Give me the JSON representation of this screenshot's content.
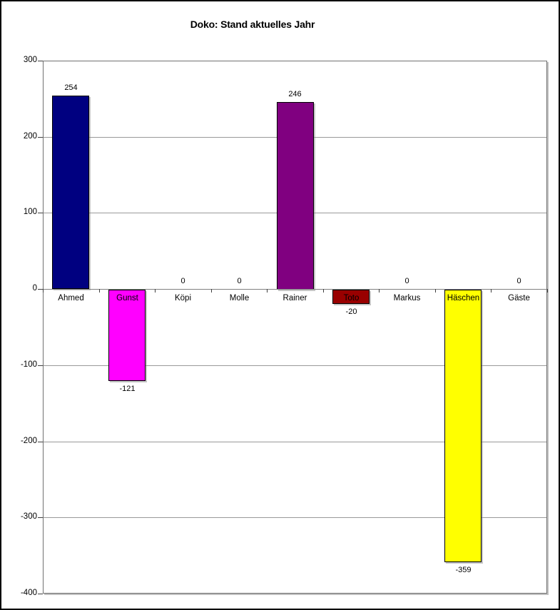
{
  "chart_data": {
    "type": "bar",
    "title": "Doko: Stand aktuelles Jahr",
    "categories": [
      "Ahmed",
      "Gunst",
      "Köpi",
      "Molle",
      "Rainer",
      "Toto",
      "Markus",
      "Häschen",
      "Gäste"
    ],
    "values": [
      254,
      -121,
      0,
      0,
      246,
      -20,
      0,
      -359,
      0
    ],
    "value_labels": [
      "254",
      "-121",
      "0",
      "0",
      "246",
      "-20",
      "0",
      "-359",
      "0"
    ],
    "bar_colors": [
      "#000080",
      "#FF00FF",
      null,
      null,
      "#800080",
      "#990000",
      null,
      "#FFFF00",
      null
    ],
    "xlabel": "",
    "ylabel": "",
    "ylim": [
      -400,
      300
    ],
    "yticks": [
      300,
      200,
      100,
      0,
      -100,
      -200,
      -300,
      -400
    ],
    "ytick_labels": [
      "300",
      "200",
      "100",
      "0",
      "-100",
      "-200",
      "-300",
      "-400"
    ],
    "grid": true,
    "legend": "none",
    "styles": {
      "background": "#FFFFFF",
      "outer_border": "#000000",
      "plot_border": "#707070",
      "grid_color": "#999999",
      "axis_color": "#808080",
      "tick_color": "#404040",
      "bar_border": "#000000",
      "text_color": "#000000"
    }
  }
}
